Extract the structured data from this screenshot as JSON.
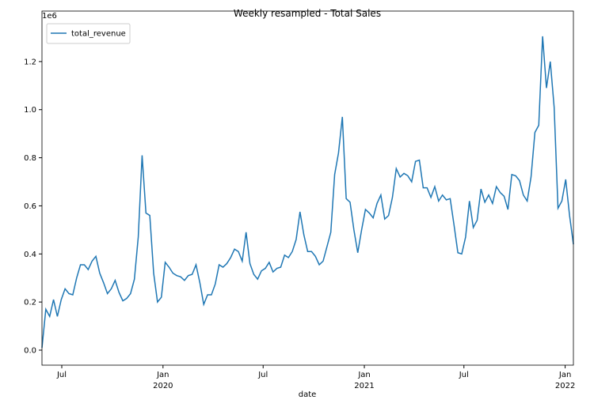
{
  "chart_data": {
    "type": "line",
    "title": "Weekly resampled - Total Sales",
    "xlabel": "date",
    "y_offset_label": "1e6",
    "legend": "upper left",
    "grid": false,
    "series": [
      {
        "name": "total_revenue",
        "color": "#1f77b4",
        "values": [
          0.01,
          0.17,
          0.14,
          0.21,
          0.14,
          0.21,
          0.255,
          0.235,
          0.23,
          0.3,
          0.355,
          0.355,
          0.335,
          0.37,
          0.39,
          0.32,
          0.28,
          0.235,
          0.255,
          0.29,
          0.24,
          0.205,
          0.215,
          0.235,
          0.295,
          0.47,
          0.81,
          0.57,
          0.56,
          0.32,
          0.2,
          0.22,
          0.365,
          0.345,
          0.32,
          0.31,
          0.305,
          0.29,
          0.31,
          0.315,
          0.355,
          0.28,
          0.19,
          0.23,
          0.23,
          0.275,
          0.355,
          0.345,
          0.36,
          0.385,
          0.42,
          0.41,
          0.37,
          0.49,
          0.36,
          0.315,
          0.295,
          0.33,
          0.34,
          0.365,
          0.325,
          0.34,
          0.345,
          0.395,
          0.385,
          0.41,
          0.46,
          0.575,
          0.48,
          0.41,
          0.41,
          0.39,
          0.355,
          0.37,
          0.43,
          0.49,
          0.73,
          0.82,
          0.97,
          0.63,
          0.615,
          0.5,
          0.405,
          0.5,
          0.585,
          0.57,
          0.55,
          0.61,
          0.645,
          0.545,
          0.56,
          0.635,
          0.755,
          0.72,
          0.735,
          0.725,
          0.7,
          0.785,
          0.79,
          0.675,
          0.675,
          0.635,
          0.68,
          0.62,
          0.645,
          0.625,
          0.63,
          0.52,
          0.405,
          0.4,
          0.47,
          0.62,
          0.51,
          0.54,
          0.67,
          0.615,
          0.645,
          0.61,
          0.68,
          0.655,
          0.64,
          0.585,
          0.73,
          0.725,
          0.705,
          0.645,
          0.62,
          0.72,
          0.905,
          0.935,
          1.305,
          1.09,
          1.2,
          1.01,
          0.59,
          0.62,
          0.71,
          0.56,
          0.44
        ]
      }
    ],
    "xlim": [
      0,
      138
    ],
    "xticks": [
      {
        "value": 5.14,
        "label": "Jul"
      },
      {
        "value": 31.43,
        "label": "Jan\n2020"
      },
      {
        "value": 57.43,
        "label": "Jul"
      },
      {
        "value": 83.71,
        "label": "Jan\n2021"
      },
      {
        "value": 109.57,
        "label": "Jul"
      },
      {
        "value": 135.86,
        "label": "Jan\n2022"
      }
    ],
    "ylim": [
      -0.0625,
      1.41
    ],
    "yticks": [
      {
        "value": 0,
        "label": "0.0"
      },
      0.2,
      0.4,
      0.6,
      0.8,
      {
        "value": 1,
        "label": "1.0"
      },
      1.2
    ]
  }
}
